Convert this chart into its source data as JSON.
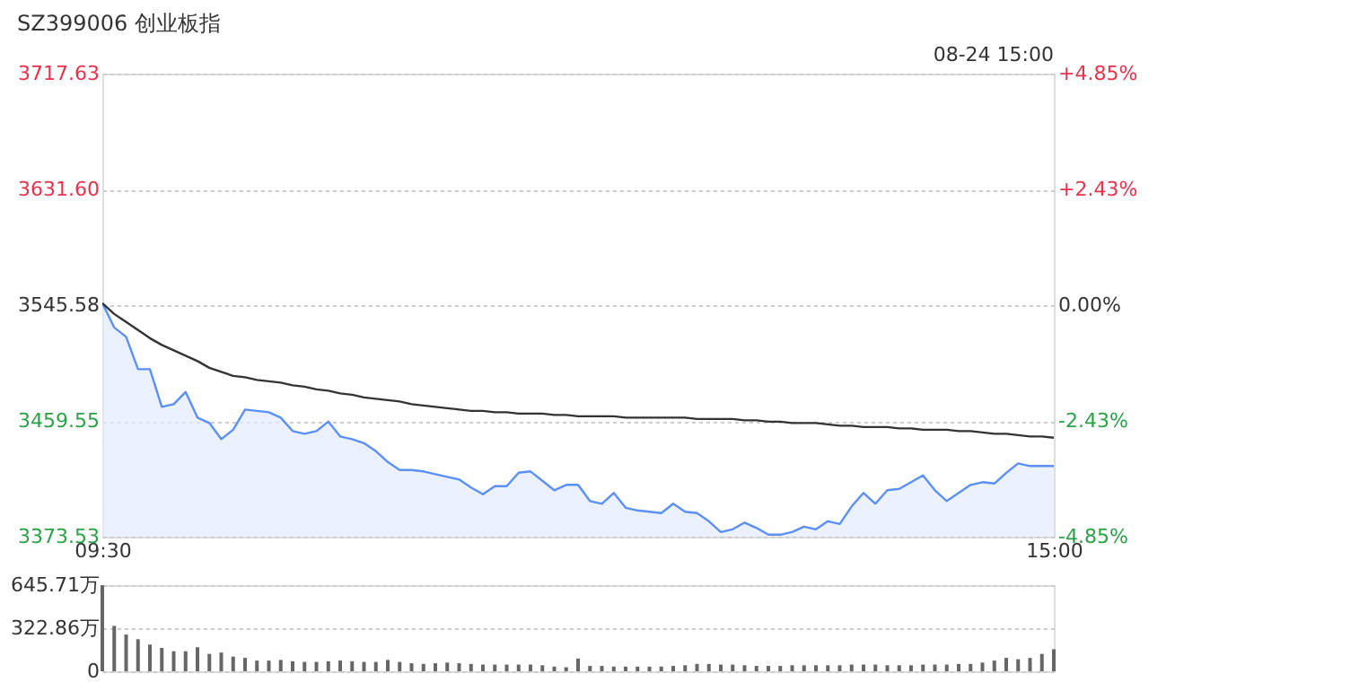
{
  "chart_data": [
    {
      "type": "area",
      "title": "SZ399006 创业板指",
      "annotations": [
        "08-24 15:00"
      ],
      "categories": [
        "09:30",
        null,
        null,
        null,
        null,
        null,
        null,
        null,
        null,
        null,
        null,
        null,
        null,
        null,
        null,
        null,
        null,
        null,
        null,
        null,
        null,
        null,
        null,
        null,
        null,
        null,
        null,
        null,
        null,
        null,
        null,
        null,
        null,
        null,
        null,
        null,
        null,
        null,
        null,
        null,
        null,
        null,
        null,
        null,
        null,
        null,
        null,
        null,
        null,
        null,
        null,
        null,
        null,
        null,
        null,
        null,
        null,
        null,
        null,
        null,
        null,
        null,
        null,
        null,
        null,
        null,
        null,
        null,
        null,
        null,
        null,
        null,
        null,
        null,
        null,
        null,
        null,
        null,
        null,
        null,
        "15:00"
      ],
      "ylim": [
        3373.53,
        3717.63
      ],
      "yticks": [
        3373.53,
        3459.55,
        3545.58,
        {
          "value": 3631.6,
          "label": "3631.60"
        },
        3717.63
      ],
      "y2lim": [
        -4.85,
        4.85
      ],
      "y2ticks": [
        {
          "value": -4.85,
          "label": "-4.85%"
        },
        {
          "value": -2.43,
          "label": "-2.43%"
        },
        {
          "value": 0,
          "label": "0.00%"
        },
        {
          "value": 2.43,
          "label": "+2.43%"
        },
        {
          "value": 4.85,
          "label": "+4.85%"
        }
      ],
      "grid": "y",
      "series": [
        {
          "type": "area",
          "color": "#5b8ff9",
          "values": [
            3547,
            3529,
            3522,
            3498,
            3498,
            3470,
            3472,
            3481,
            3462,
            3458,
            3446,
            3453,
            3468,
            3467,
            3466,
            3462,
            3452,
            3450,
            3452,
            3459,
            3448,
            3446,
            3443,
            3437,
            3429,
            3423,
            3423,
            3422,
            3420,
            3418,
            3416,
            3410,
            3405,
            3411,
            3411,
            3421,
            3422,
            3415,
            3408,
            3412,
            3412,
            3400,
            3398,
            3406,
            3395,
            3393,
            3392,
            3391,
            3398,
            3392,
            3391,
            3385,
            3377,
            3379,
            3384,
            3380,
            3375,
            3375,
            3377,
            3381,
            3379,
            3385,
            3383,
            3396,
            3406,
            3398,
            3408,
            3409,
            3414,
            3419,
            3408,
            3400,
            3406,
            3412,
            3414,
            3413,
            3421,
            3428,
            3426,
            3426,
            3426
          ]
        },
        {
          "type": "line",
          "color": "#333333",
          "values": [
            3547,
            3539,
            3533,
            3527,
            3521,
            3516,
            3512,
            3508,
            3504,
            3499,
            3496,
            3493,
            3492,
            3490,
            3489,
            3488,
            3486,
            3485,
            3483,
            3482,
            3480,
            3479,
            3477,
            3476,
            3475,
            3474,
            3472,
            3471,
            3470,
            3469,
            3468,
            3467,
            3467,
            3466,
            3466,
            3465,
            3465,
            3465,
            3464,
            3464,
            3463,
            3463,
            3463,
            3463,
            3462,
            3462,
            3462,
            3462,
            3462,
            3462,
            3461,
            3461,
            3461,
            3461,
            3460,
            3460,
            3459,
            3459,
            3458,
            3458,
            3458,
            3457,
            3456,
            3456,
            3455,
            3455,
            3455,
            3454,
            3454,
            3453,
            3453,
            3453,
            3452,
            3452,
            3451,
            3450,
            3450,
            3449,
            3448,
            3448,
            3447
          ]
        }
      ]
    },
    {
      "type": "bar",
      "categories": [
        null,
        null,
        null,
        null,
        null,
        null,
        null,
        null,
        null,
        null,
        null,
        null,
        null,
        null,
        null,
        null,
        null,
        null,
        null,
        null,
        null,
        null,
        null,
        null,
        null,
        null,
        null,
        null,
        null,
        null,
        null,
        null,
        null,
        null,
        null,
        null,
        null,
        null,
        null,
        null,
        null,
        null,
        null,
        null,
        null,
        null,
        null,
        null,
        null,
        null,
        null,
        null,
        null,
        null,
        null,
        null,
        null,
        null,
        null,
        null,
        null,
        null,
        null,
        null,
        null,
        null,
        null,
        null,
        null,
        null,
        null,
        null,
        null,
        null,
        null,
        null,
        null,
        null,
        null,
        null,
        null
      ],
      "ylim": [
        0,
        645.71
      ],
      "yticks": [
        0,
        {
          "value": 322.86,
          "label": "322.86万"
        },
        {
          "value": 645.71,
          "label": "645.71万"
        }
      ],
      "grid": "y",
      "tick_labels": "y",
      "series": [
        {
          "color": "#666666",
          "values": [
            645,
            340,
            275,
            240,
            200,
            175,
            150,
            150,
            180,
            130,
            140,
            110,
            100,
            80,
            80,
            85,
            75,
            70,
            70,
            75,
            80,
            75,
            70,
            70,
            85,
            70,
            60,
            55,
            60,
            65,
            60,
            55,
            50,
            50,
            50,
            50,
            50,
            45,
            35,
            30,
            95,
            40,
            40,
            35,
            35,
            35,
            35,
            35,
            40,
            45,
            55,
            55,
            50,
            50,
            45,
            40,
            40,
            40,
            45,
            45,
            45,
            45,
            45,
            50,
            50,
            50,
            45,
            45,
            45,
            50,
            50,
            50,
            55,
            55,
            65,
            80,
            100,
            90,
            100,
            130,
            165
          ]
        }
      ]
    }
  ]
}
